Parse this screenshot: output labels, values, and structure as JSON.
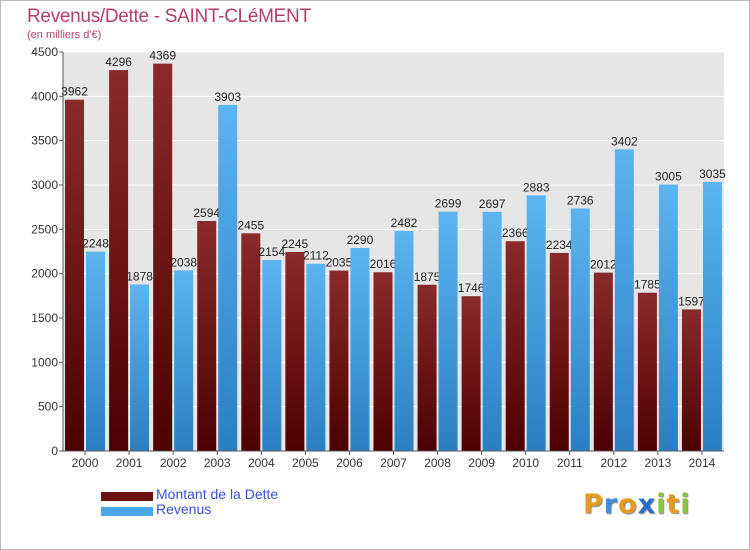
{
  "header": {
    "title": "Revenus/Dette - SAINT-CLéMENT",
    "subtitle": "(en milliers d'€)"
  },
  "chart_data": {
    "type": "bar",
    "title": "Revenus/Dette - SAINT-CLéMENT",
    "ylabel": "(en milliers d'€)",
    "xlabel": "",
    "categories": [
      "2000",
      "2001",
      "2002",
      "2003",
      "2004",
      "2005",
      "2006",
      "2007",
      "2008",
      "2009",
      "2010",
      "2011",
      "2012",
      "2013",
      "2014"
    ],
    "series": [
      {
        "name": "Montant de la Dette",
        "color": "#7a1a1a",
        "values": [
          3962,
          4296,
          4369,
          2594,
          2455,
          2245,
          2035,
          2016,
          1875,
          1746,
          2366,
          2234,
          2012,
          1785,
          1597
        ],
        "labels": [
          "3962",
          "4296",
          "4369",
          "2594",
          "2455",
          "2245",
          "2035",
          "2016",
          "1875",
          "1746",
          "2366",
          "2234",
          "2012",
          "1785",
          "1597"
        ]
      },
      {
        "name": "Revenus",
        "color": "#4aa6e6",
        "values": [
          2248,
          1878,
          2038,
          3903,
          2154,
          2112,
          2290,
          2482,
          2699,
          2697,
          2883,
          2736,
          3402,
          3005,
          3035
        ],
        "labels": [
          "2248",
          "1878",
          "2038",
          "3903",
          "2154",
          "2112",
          "2290",
          "2482",
          "2699",
          "2697",
          "2883",
          "2736",
          "3402",
          "3005",
          "3035"
        ]
      }
    ],
    "ylim": [
      0,
      4500
    ],
    "yticks": [
      "0",
      "500",
      "1000",
      "1500",
      "2000",
      "2500",
      "3000",
      "3500",
      "4000",
      "4500"
    ],
    "grid": true,
    "legend_position": "bottom-left"
  },
  "legend": {
    "items": [
      {
        "label": "Montant de la Dette",
        "color": "#6b1212"
      },
      {
        "label": "Revenus",
        "color": "#4aa6e6"
      }
    ]
  },
  "logo": {
    "letters": [
      "P",
      "r",
      "o",
      "x",
      "i",
      "t",
      "i"
    ]
  },
  "colors": {
    "title": "#b3406a",
    "plot_background": "#e6e6e6",
    "grid": "#ffffff",
    "legend_text": "#3a4fd6"
  }
}
